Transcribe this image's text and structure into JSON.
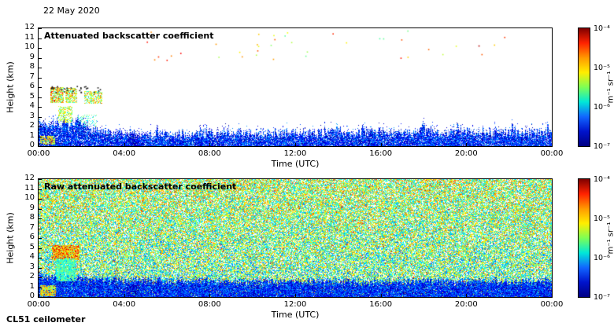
{
  "header": {
    "date_label": "22 May 2020"
  },
  "footer": {
    "instrument_label": "CL51 ceilometer"
  },
  "colorbar_gradient": [
    "#7f0000",
    "#ff2200",
    "#ff9900",
    "#ffee00",
    "#7dff55",
    "#00e8d8",
    "#1166ff",
    "#0013cc",
    "#000083"
  ],
  "chart_data": [
    {
      "type": "heatmap",
      "title": "Attenuated backscatter coefficient",
      "xlabel": "Time (UTC)",
      "ylabel": "Height (km)",
      "xlim_hours": [
        0,
        24
      ],
      "ylim_km": [
        0,
        12
      ],
      "x_tick_hours": [
        0,
        4,
        8,
        12,
        16,
        20,
        24
      ],
      "x_tick_labels": [
        "00:00",
        "04:00",
        "08:00",
        "12:00",
        "16:00",
        "20:00",
        "00:00"
      ],
      "y_ticks": [
        0,
        1,
        2,
        3,
        4,
        5,
        6,
        7,
        8,
        9,
        10,
        11,
        12
      ],
      "colorbar_ticks": [
        "10⁻⁴",
        "10⁻⁵",
        "10⁻⁶",
        "10⁻⁷"
      ],
      "colorbar_unit": "m⁻¹ sr⁻¹",
      "colorbar_scale": "log",
      "colorbar_range_m1sr1": [
        1e-07,
        0.0001
      ],
      "render": {
        "seed": 7,
        "bl": {
          "base": [
            [
              0,
              2.5
            ],
            [
              1.2,
              2.4
            ],
            [
              2.5,
              2.0
            ],
            [
              3.2,
              1.5
            ],
            [
              6,
              1.3
            ],
            [
              12,
              1.5
            ],
            [
              18,
              1.6
            ],
            [
              24,
              1.5
            ]
          ],
          "jitter": 0.45,
          "spike_prob": 0.05,
          "spike": 0.9,
          "density": 0.88,
          "v": [
            0.02,
            0.3
          ]
        },
        "haze": {
          "t": [
            3.3,
            24
          ],
          "h": [
            0,
            0.85
          ],
          "color": [
            223,
            227,
            247
          ]
        },
        "features": [
          {
            "t": [
              0.05,
              0.75
            ],
            "h": [
              0.15,
              1.05
            ],
            "density": 0.7,
            "v": [
              0.45,
              0.78
            ]
          },
          {
            "t": [
              0.55,
              1.15
            ],
            "h": [
              4.4,
              6.0
            ],
            "density": 0.72,
            "v": [
              0.38,
              0.88
            ]
          },
          {
            "t": [
              1.25,
              1.8
            ],
            "h": [
              4.4,
              5.9
            ],
            "density": 0.7,
            "v": [
              0.38,
              0.85
            ]
          },
          {
            "t": [
              2.1,
              2.95
            ],
            "h": [
              4.3,
              5.6
            ],
            "density": 0.6,
            "v": [
              0.38,
              0.8
            ]
          },
          {
            "t": [
              0.9,
              1.55
            ],
            "h": [
              2.4,
              4.1
            ],
            "density": 0.5,
            "v": [
              0.42,
              0.7
            ]
          },
          {
            "t": [
              1.8,
              2.7
            ],
            "h": [
              2.0,
              3.2
            ],
            "density": 0.22,
            "v": [
              0.3,
              0.55
            ]
          },
          {
            "t": [
              4.15,
              4.7
            ],
            "h": [
              0.0,
              1.3
            ],
            "density": 0.5,
            "v": [
              0.0,
              0.14
            ]
          }
        ],
        "dots": {
          "count": 40,
          "t": [
            4.5,
            23.7
          ],
          "h": [
            8.8,
            11.8
          ],
          "v": [
            0.45,
            0.95
          ]
        },
        "black_dots": {
          "count": 28,
          "t": [
            0.55,
            2.95
          ],
          "h": [
            5.5,
            6.15
          ]
        }
      }
    },
    {
      "type": "heatmap",
      "title": "Raw attenuated backscatter coefficient",
      "xlabel": "Time (UTC)",
      "ylabel": "Height (km)",
      "xlim_hours": [
        0,
        24
      ],
      "ylim_km": [
        0,
        12
      ],
      "x_tick_hours": [
        0,
        4,
        8,
        12,
        16,
        20,
        24
      ],
      "x_tick_labels": [
        "00:00",
        "04:00",
        "08:00",
        "12:00",
        "16:00",
        "20:00",
        "00:00"
      ],
      "y_ticks": [
        0,
        1,
        2,
        3,
        4,
        5,
        6,
        7,
        8,
        9,
        10,
        11,
        12
      ],
      "colorbar_ticks": [
        "10⁻⁴",
        "10⁻⁵",
        "10⁻⁶",
        "10⁻⁷"
      ],
      "colorbar_unit": "m⁻¹ sr⁻¹",
      "colorbar_scale": "log",
      "colorbar_range_m1sr1": [
        1e-07,
        0.0001
      ],
      "render": {
        "seed": 99,
        "field": {
          "density": 0.76,
          "v": [
            0.18,
            0.7
          ],
          "h_gain": 0.1,
          "hot_prob": 0.025,
          "hot_v": [
            0.74,
            0.92
          ]
        },
        "bl": {
          "base": [
            [
              0,
              2.4
            ],
            [
              2,
              2.1
            ],
            [
              4,
              1.9
            ],
            [
              12,
              1.7
            ],
            [
              24,
              1.8
            ]
          ],
          "jitter": 0.3,
          "spike_prob": 0,
          "spike": 0,
          "density": 0.95,
          "v": [
            0.02,
            0.3
          ]
        },
        "haze": {
          "t": [
            3.3,
            24
          ],
          "h": [
            0,
            0.45
          ],
          "color": [
            226,
            229,
            248
          ]
        },
        "features": [
          {
            "t": [
              0.6,
              1.9
            ],
            "h": [
              3.8,
              5.3
            ],
            "density": 0.92,
            "v": [
              0.5,
              0.92
            ]
          },
          {
            "t": [
              0.8,
              1.7
            ],
            "h": [
              1.6,
              3.9
            ],
            "density": 0.85,
            "v": [
              0.33,
              0.55
            ]
          },
          {
            "t": [
              0.05,
              0.8
            ],
            "h": [
              0.1,
              1.2
            ],
            "density": 0.85,
            "v": [
              0.45,
              0.8
            ]
          },
          {
            "t": [
              4.15,
              4.7
            ],
            "h": [
              0.0,
              1.3
            ],
            "density": 0.5,
            "v": [
              0.0,
              0.12
            ]
          }
        ]
      }
    }
  ]
}
